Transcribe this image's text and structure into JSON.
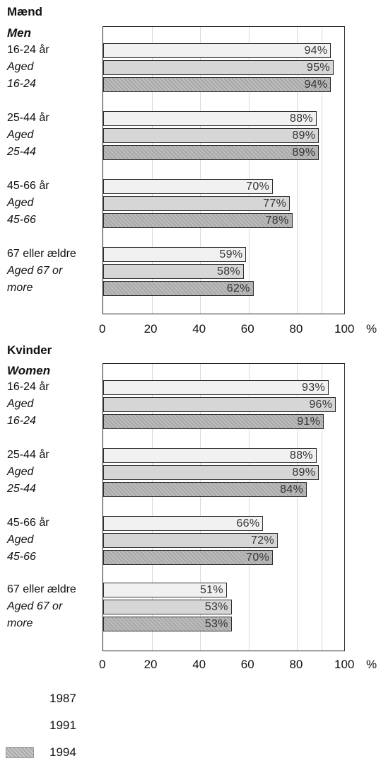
{
  "chart_data": [
    {
      "type": "bar",
      "orientation": "horizontal",
      "title": "Mænd",
      "subtitle": "Men",
      "categories": [
        [
          "16-24 år",
          "Aged",
          "16-24"
        ],
        [
          "25-44 år",
          "Aged",
          "25-44"
        ],
        [
          "45-66 år",
          "Aged",
          "45-66"
        ],
        [
          "67 eller ældre",
          "Aged 67 or",
          "more"
        ]
      ],
      "series": [
        {
          "name": "1987",
          "values": [
            94,
            88,
            70,
            59
          ]
        },
        {
          "name": "1991",
          "values": [
            95,
            89,
            77,
            58
          ]
        },
        {
          "name": "1994",
          "values": [
            94,
            89,
            78,
            62
          ]
        }
      ],
      "xlim": [
        0,
        100
      ],
      "xticks": [
        "0",
        "20",
        "40",
        "60",
        "80",
        "100"
      ],
      "xunit": "%",
      "grid": true,
      "value_suffix": "%"
    },
    {
      "type": "bar",
      "orientation": "horizontal",
      "title": "Kvinder",
      "subtitle": "Women",
      "categories": [
        [
          "16-24 år",
          "Aged",
          "16-24"
        ],
        [
          "25-44 år",
          "Aged",
          "25-44"
        ],
        [
          "45-66 år",
          "Aged",
          "45-66"
        ],
        [
          "67 eller ældre",
          "Aged 67 or",
          "more"
        ]
      ],
      "series": [
        {
          "name": "1987",
          "values": [
            93,
            88,
            66,
            51
          ]
        },
        {
          "name": "1991",
          "values": [
            96,
            89,
            72,
            53
          ]
        },
        {
          "name": "1994",
          "values": [
            91,
            84,
            70,
            53
          ]
        }
      ],
      "xlim": [
        0,
        100
      ],
      "xticks": [
        "0",
        "20",
        "40",
        "60",
        "80",
        "100"
      ],
      "xunit": "%",
      "grid": true,
      "value_suffix": "%"
    }
  ],
  "legend": {
    "placement": "bottom-left",
    "items": [
      {
        "label": "1987",
        "pattern": "none"
      },
      {
        "label": "1991",
        "pattern": "none"
      },
      {
        "label": "1994",
        "pattern": "hatched",
        "color": "#b5b5b5"
      }
    ]
  }
}
